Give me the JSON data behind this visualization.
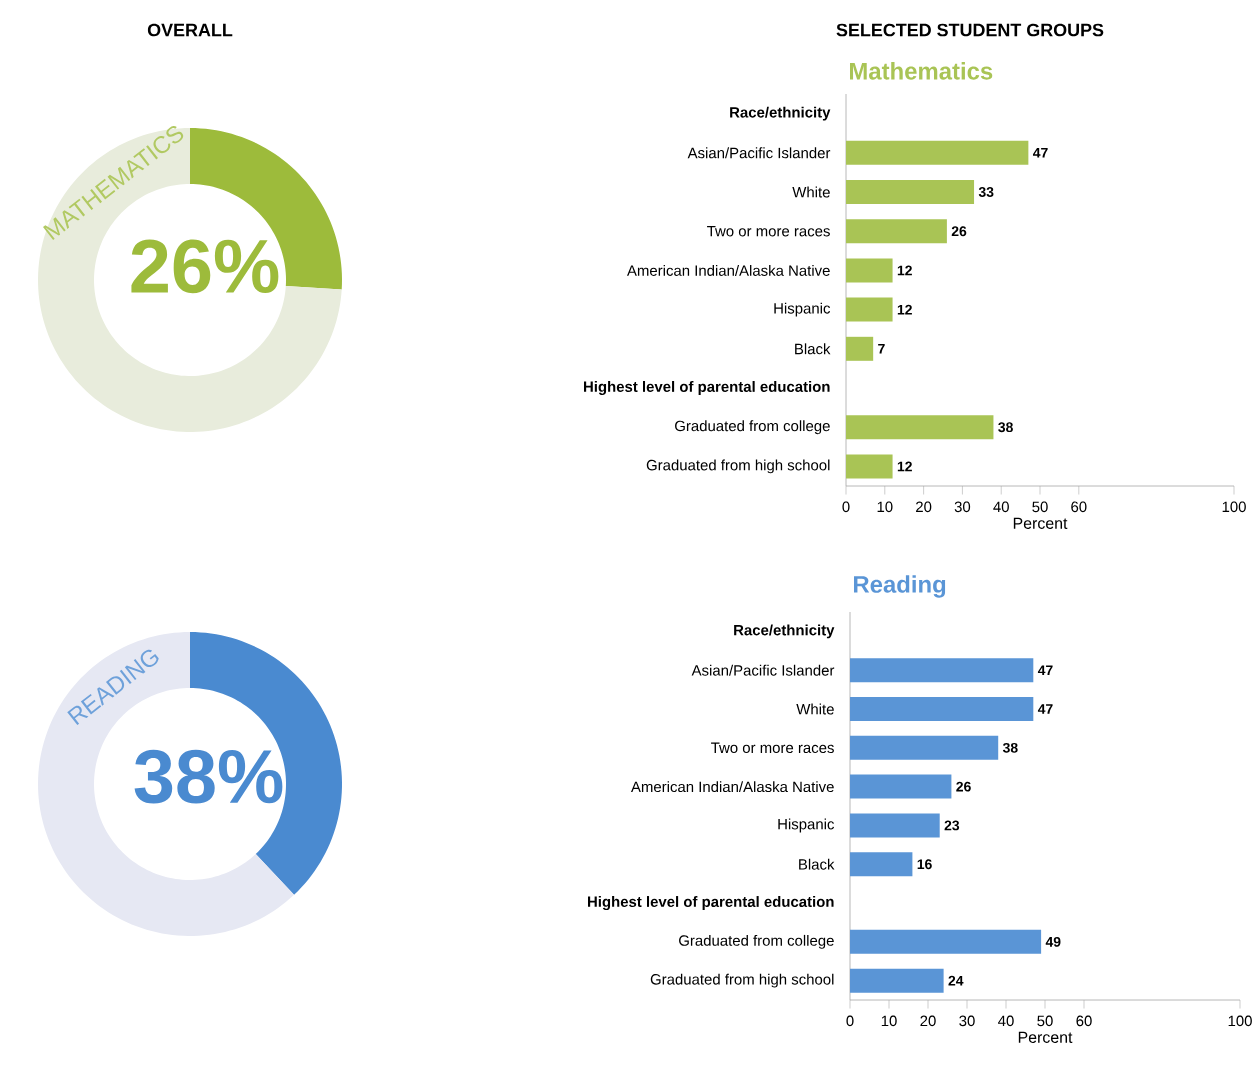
{
  "chart_data": [
    {
      "type": "donut",
      "title": "MATHEMATICS",
      "annotations": [
        "OVERALL"
      ],
      "categories": [
        null,
        null
      ],
      "values": [
        26,
        74
      ],
      "colors": [
        "#9dbb3b",
        "#e8ecdc"
      ],
      "value_labels": [
        "26%",
        null
      ]
    },
    {
      "type": "bar",
      "orientation": "horizontal",
      "title": "Mathematics",
      "annotations": [
        "SELECTED STUDENT GROUPS"
      ],
      "color": "#a9c455",
      "categories": [
        "Race/ethnicity",
        "Asian/Pacific Islander",
        "White",
        "Two or more races",
        "American Indian/Alaska Native",
        "Hispanic",
        "Black",
        "Highest level of parental education",
        "Graduated from college",
        "Graduated from high school"
      ],
      "values": [
        null,
        47,
        33,
        26,
        12,
        12,
        7,
        null,
        38,
        12
      ],
      "xlim": [
        0,
        100
      ],
      "xticks": [
        0,
        10,
        20,
        30,
        40,
        50,
        60,
        100
      ],
      "xlabel": "Percent",
      "data_labels": true
    },
    {
      "type": "donut",
      "title": "READING",
      "categories": [
        null,
        null
      ],
      "values": [
        38,
        62
      ],
      "colors": [
        "#4a8ad0",
        "#e6e8f3"
      ],
      "value_labels": [
        "38%",
        null
      ]
    },
    {
      "type": "bar",
      "orientation": "horizontal",
      "title": "Reading",
      "color": "#5a95d6",
      "categories": [
        "Race/ethnicity",
        "Asian/Pacific Islander",
        "White",
        "Two or more races",
        "American Indian/Alaska Native",
        "Hispanic",
        "Black",
        "Highest level of parental education",
        "Graduated from college",
        "Graduated from high school"
      ],
      "values": [
        null,
        47,
        47,
        38,
        26,
        23,
        16,
        null,
        49,
        24
      ],
      "xlim": [
        0,
        100
      ],
      "xticks": [
        0,
        10,
        20,
        30,
        40,
        50,
        60,
        100
      ],
      "xlabel": "Percent",
      "data_labels": true
    }
  ]
}
